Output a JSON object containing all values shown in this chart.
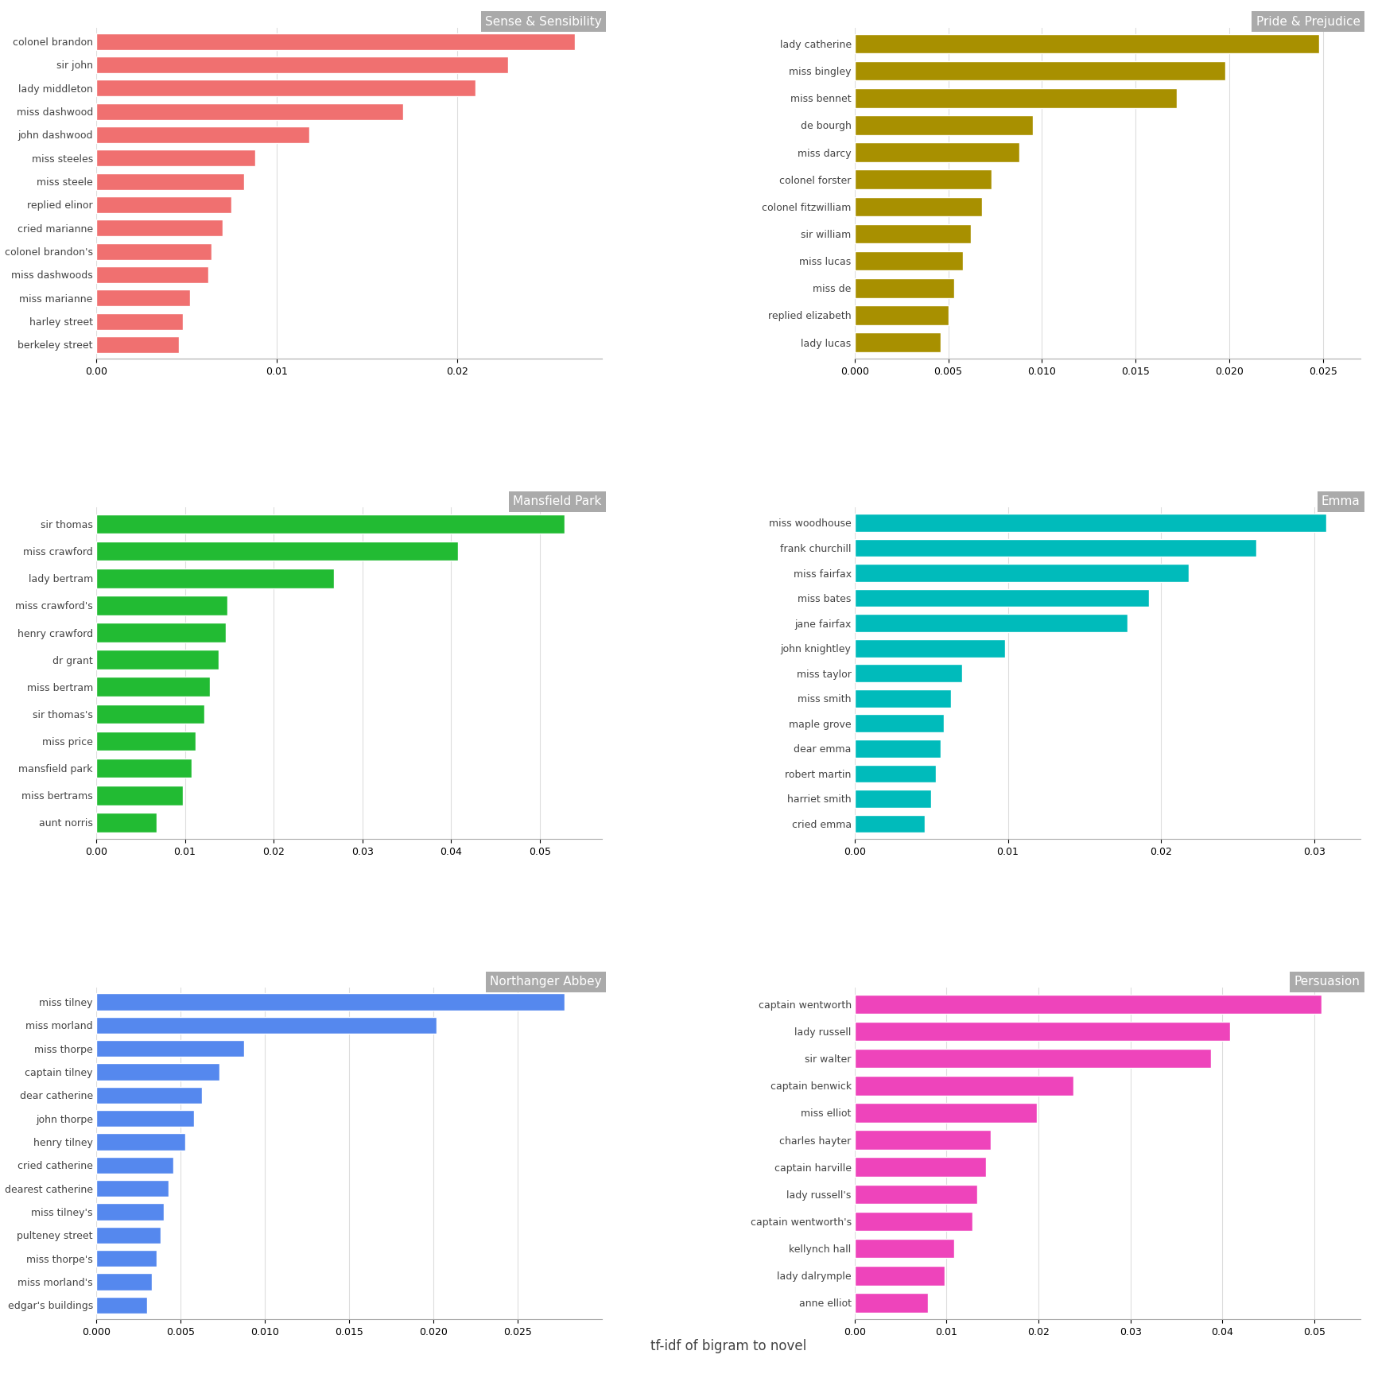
{
  "novels": [
    {
      "title": "Sense & Sensibility",
      "color": "#F07070",
      "xlim": [
        0,
        0.028
      ],
      "xticks": [
        0.0,
        0.01,
        0.02
      ],
      "xticklabels": [
        "0.00",
        "0.01",
        "0.02"
      ],
      "labels": [
        "colonel brandon",
        "sir john",
        "lady middleton",
        "miss dashwood",
        "john dashwood",
        "miss steeles",
        "miss steele",
        "replied elinor",
        "cried marianne",
        "colonel brandon's",
        "miss dashwoods",
        "miss marianne",
        "harley street",
        "berkeley street"
      ],
      "values": [
        0.0265,
        0.0228,
        0.021,
        0.017,
        0.0118,
        0.0088,
        0.0082,
        0.0075,
        0.007,
        0.0064,
        0.0062,
        0.0052,
        0.0048,
        0.0046
      ]
    },
    {
      "title": "Pride & Prejudice",
      "color": "#A89000",
      "xlim": [
        0,
        0.027
      ],
      "xticks": [
        0.0,
        0.005,
        0.01,
        0.015,
        0.02,
        0.025
      ],
      "xticklabels": [
        "0.000",
        "0.005",
        "0.010",
        "0.015",
        "0.020",
        "0.025"
      ],
      "labels": [
        "lady catherine",
        "miss bingley",
        "miss bennet",
        "de bourgh",
        "miss darcy",
        "colonel forster",
        "colonel fitzwilliam",
        "sir william",
        "miss lucas",
        "miss de",
        "replied elizabeth",
        "lady lucas"
      ],
      "values": [
        0.0248,
        0.0198,
        0.0172,
        0.0095,
        0.0088,
        0.0073,
        0.0068,
        0.0062,
        0.0058,
        0.0053,
        0.005,
        0.0046
      ]
    },
    {
      "title": "Mansfield Park",
      "color": "#22BB33",
      "xlim": [
        0,
        0.057
      ],
      "xticks": [
        0.0,
        0.01,
        0.02,
        0.03,
        0.04,
        0.05
      ],
      "xticklabels": [
        "0.00",
        "0.01",
        "0.02",
        "0.03",
        "0.04",
        "0.05"
      ],
      "labels": [
        "sir thomas",
        "miss crawford",
        "lady bertram",
        "miss crawford's",
        "henry crawford",
        "dr grant",
        "miss bertram",
        "sir thomas's",
        "miss price",
        "mansfield park",
        "miss bertrams",
        "aunt norris"
      ],
      "values": [
        0.0528,
        0.0408,
        0.0268,
        0.0148,
        0.0146,
        0.0138,
        0.0128,
        0.0122,
        0.0112,
        0.0108,
        0.0098,
        0.0068
      ]
    },
    {
      "title": "Emma",
      "color": "#00BBBB",
      "xlim": [
        0,
        0.033
      ],
      "xticks": [
        0.0,
        0.01,
        0.02,
        0.03
      ],
      "xticklabels": [
        "0.00",
        "0.01",
        "0.02",
        "0.03"
      ],
      "labels": [
        "miss woodhouse",
        "frank churchill",
        "miss fairfax",
        "miss bates",
        "jane fairfax",
        "john knightley",
        "miss taylor",
        "miss smith",
        "maple grove",
        "dear emma",
        "robert martin",
        "harriet smith",
        "cried emma"
      ],
      "values": [
        0.0308,
        0.0262,
        0.0218,
        0.0192,
        0.0178,
        0.0098,
        0.007,
        0.0063,
        0.0058,
        0.0056,
        0.0053,
        0.005,
        0.0046
      ]
    },
    {
      "title": "Northanger Abbey",
      "color": "#5588EE",
      "xlim": [
        0,
        0.03
      ],
      "xticks": [
        0.0,
        0.005,
        0.01,
        0.015,
        0.02,
        0.025
      ],
      "xticklabels": [
        "0.000",
        "0.005",
        "0.010",
        "0.015",
        "0.020",
        "0.025"
      ],
      "labels": [
        "miss tilney",
        "miss morland",
        "miss thorpe",
        "captain tilney",
        "dear catherine",
        "john thorpe",
        "henry tilney",
        "cried catherine",
        "dearest catherine",
        "miss tilney's",
        "pulteney street",
        "miss thorpe's",
        "miss morland's",
        "edgar's buildings"
      ],
      "values": [
        0.0278,
        0.0202,
        0.0088,
        0.0073,
        0.0063,
        0.0058,
        0.0053,
        0.0046,
        0.0043,
        0.004,
        0.0038,
        0.0036,
        0.0033,
        0.003
      ]
    },
    {
      "title": "Persuasion",
      "color": "#EE44BB",
      "xlim": [
        0,
        0.055
      ],
      "xticks": [
        0.0,
        0.01,
        0.02,
        0.03,
        0.04,
        0.05
      ],
      "xticklabels": [
        "0.00",
        "0.01",
        "0.02",
        "0.03",
        "0.04",
        "0.05"
      ],
      "labels": [
        "captain wentworth",
        "lady russell",
        "sir walter",
        "captain benwick",
        "miss elliot",
        "charles hayter",
        "captain harville",
        "lady russell's",
        "captain wentworth's",
        "kellynch hall",
        "lady dalrymple",
        "anne elliot"
      ],
      "values": [
        0.0508,
        0.0408,
        0.0388,
        0.0238,
        0.0198,
        0.0148,
        0.0143,
        0.0133,
        0.0128,
        0.0108,
        0.0098,
        0.008
      ]
    }
  ],
  "xlabel": "tf-idf of bigram to novel",
  "background_color": "#ffffff",
  "title_bg_color": "#aaaaaa",
  "grid_color": "#dddddd",
  "bar_gap": 0.15,
  "title_fontsize": 11,
  "label_fontsize": 9,
  "tick_fontsize": 9
}
